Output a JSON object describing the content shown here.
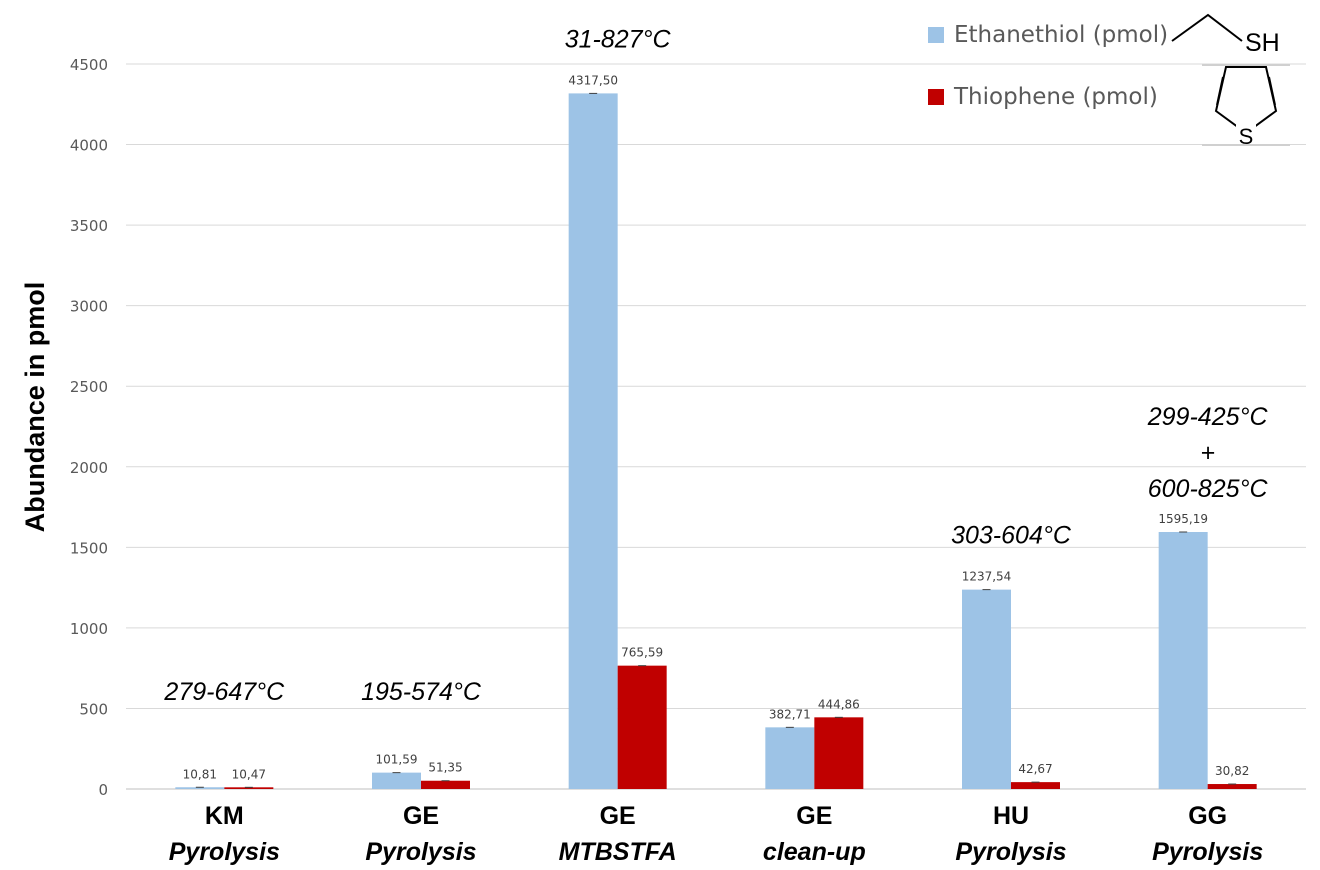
{
  "chart_data": {
    "type": "bar",
    "ylabel": "Abundance in pmol",
    "ylim": [
      0,
      4500
    ],
    "yticks": [
      0,
      500,
      1000,
      1500,
      2000,
      2500,
      3000,
      3500,
      4000,
      4500
    ],
    "grid": true,
    "legend_position": "top-right",
    "categories": [
      {
        "line1": "KM",
        "line2": "Pyrolysis"
      },
      {
        "line1": "GE",
        "line2": "Pyrolysis"
      },
      {
        "line1": "GE",
        "line2": "MTBSTFA"
      },
      {
        "line1": "GE",
        "line2": "clean-up"
      },
      {
        "line1": "HU",
        "line2": "Pyrolysis"
      },
      {
        "line1": "GG",
        "line2": "Pyrolysis"
      }
    ],
    "series": [
      {
        "name": "Ethanethiol (pmol)",
        "color": "#9DC3E6",
        "values": [
          10.81,
          101.59,
          4317.5,
          382.71,
          1237.54,
          1595.19
        ],
        "labels": [
          "10,81",
          "101,59",
          "4317,50",
          "382,71",
          "1237,54",
          "1595,19"
        ]
      },
      {
        "name": "Thiophene (pmol)",
        "color": "#C00000",
        "values": [
          10.47,
          51.35,
          765.59,
          444.86,
          42.67,
          30.82
        ],
        "labels": [
          "10,47",
          "51,35",
          "765,59",
          "444,86",
          "42,67",
          "30,82"
        ]
      }
    ],
    "annotations": [
      {
        "category_index": 0,
        "lines": [
          "279-647°C"
        ]
      },
      {
        "category_index": 1,
        "lines": [
          "195-574°C"
        ]
      },
      {
        "category_index": 2,
        "lines": [
          "31-827°C"
        ]
      },
      {
        "category_index": 4,
        "lines": [
          "303-604°C"
        ]
      },
      {
        "category_index": 5,
        "lines": [
          "299-425°C",
          "+",
          "600-825°C"
        ]
      }
    ],
    "structure_labels": {
      "ethanethiol": "SH",
      "thiophene": "S"
    }
  }
}
